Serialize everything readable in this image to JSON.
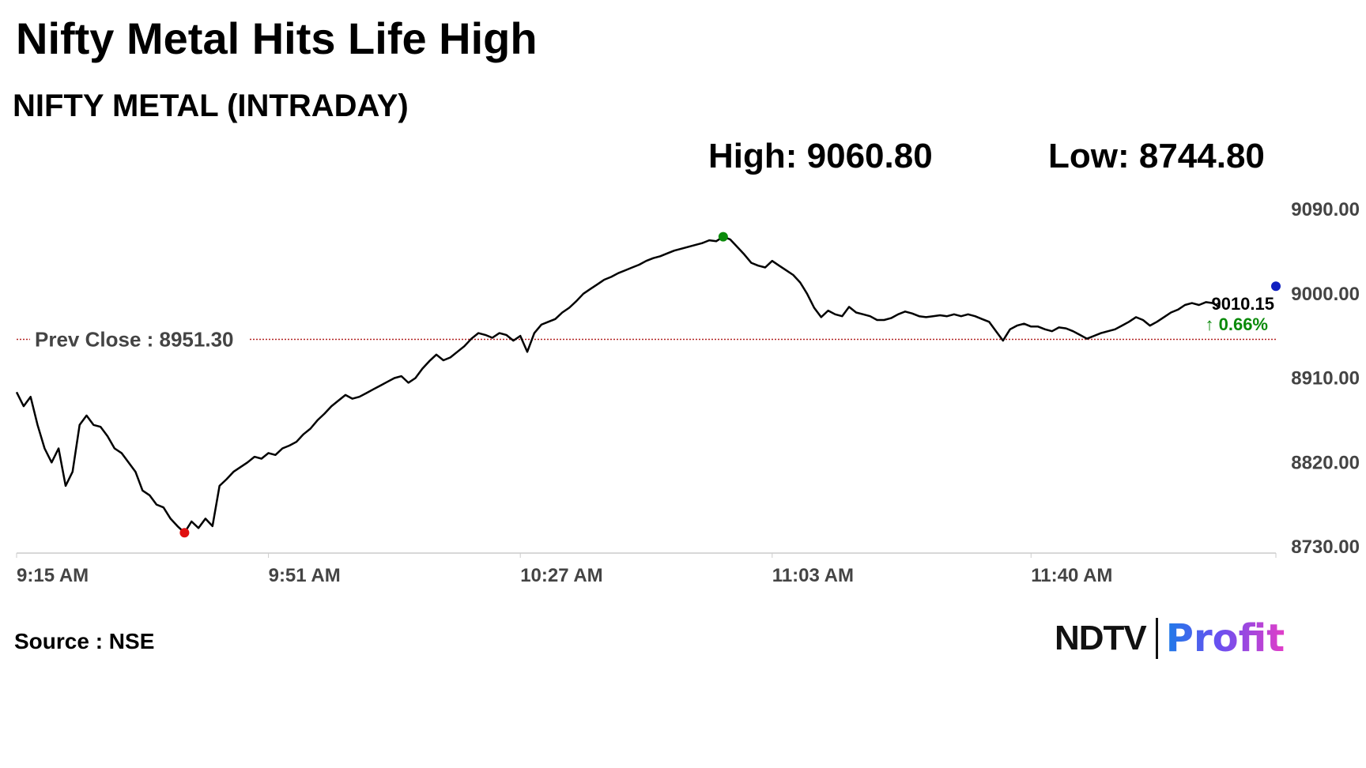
{
  "headline": "Nifty Metal Hits Life High",
  "chart_data": {
    "type": "line",
    "title": "NIFTY METAL (INTRADAY)",
    "stats": {
      "high_label": "High: 9060.80",
      "low_label": "Low: 8744.80"
    },
    "high": 9060.8,
    "low": 8744.8,
    "prev_close": 8951.3,
    "prev_close_label": "Prev Close : 8951.30",
    "last_value": "9010.15",
    "change_label": "↑ 0.66%",
    "ylim": [
      8730,
      9090
    ],
    "y_ticks": [
      "9090.00",
      "9000.00",
      "8910.00",
      "8820.00",
      "8730.00"
    ],
    "y_tick_values": [
      9090,
      9000,
      8910,
      8820,
      8730
    ],
    "x_ticks": [
      "9:15 AM",
      "9:51 AM",
      "10:27 AM",
      "11:03 AM",
      "11:40 AM"
    ],
    "x_tick_minutes": [
      0,
      36,
      72,
      108,
      145
    ],
    "xlim_minutes": [
      0,
      180
    ],
    "x_unit": "minutes since 9:15 AM",
    "series": [
      {
        "points": [
          [
            0,
            8895
          ],
          [
            1,
            8880
          ],
          [
            2,
            8890
          ],
          [
            3,
            8860
          ],
          [
            4,
            8835
          ],
          [
            5,
            8820
          ],
          [
            6,
            8835
          ],
          [
            7,
            8795
          ],
          [
            8,
            8810
          ],
          [
            9,
            8860
          ],
          [
            10,
            8870
          ],
          [
            11,
            8860
          ],
          [
            12,
            8858
          ],
          [
            13,
            8848
          ],
          [
            14,
            8835
          ],
          [
            15,
            8830
          ],
          [
            16,
            8820
          ],
          [
            17,
            8810
          ],
          [
            18,
            8790
          ],
          [
            19,
            8785
          ],
          [
            20,
            8775
          ],
          [
            21,
            8772
          ],
          [
            22,
            8760
          ],
          [
            23,
            8752
          ],
          [
            24,
            8745
          ],
          [
            25,
            8757
          ],
          [
            26,
            8750
          ],
          [
            27,
            8760
          ],
          [
            28,
            8752
          ],
          [
            29,
            8795
          ],
          [
            30,
            8802
          ],
          [
            31,
            8810
          ],
          [
            32,
            8815
          ],
          [
            33,
            8820
          ],
          [
            34,
            8826
          ],
          [
            35,
            8824
          ],
          [
            36,
            8830
          ],
          [
            37,
            8828
          ],
          [
            38,
            8835
          ],
          [
            39,
            8838
          ],
          [
            40,
            8842
          ],
          [
            41,
            8850
          ],
          [
            42,
            8856
          ],
          [
            43,
            8865
          ],
          [
            44,
            8872
          ],
          [
            45,
            8880
          ],
          [
            46,
            8886
          ],
          [
            47,
            8892
          ],
          [
            48,
            8888
          ],
          [
            49,
            8890
          ],
          [
            50,
            8894
          ],
          [
            51,
            8898
          ],
          [
            52,
            8902
          ],
          [
            53,
            8906
          ],
          [
            54,
            8910
          ],
          [
            55,
            8912
          ],
          [
            56,
            8905
          ],
          [
            57,
            8910
          ],
          [
            58,
            8920
          ],
          [
            59,
            8928
          ],
          [
            60,
            8935
          ],
          [
            61,
            8929
          ],
          [
            62,
            8932
          ],
          [
            63,
            8938
          ],
          [
            64,
            8944
          ],
          [
            65,
            8952
          ],
          [
            66,
            8958
          ],
          [
            67,
            8956
          ],
          [
            68,
            8953
          ],
          [
            69,
            8958
          ],
          [
            70,
            8956
          ],
          [
            71,
            8950
          ],
          [
            72,
            8955
          ],
          [
            73,
            8938
          ],
          [
            74,
            8958
          ],
          [
            75,
            8967
          ],
          [
            76,
            8970
          ],
          [
            77,
            8973
          ],
          [
            78,
            8980
          ],
          [
            79,
            8985
          ],
          [
            80,
            8992
          ],
          [
            81,
            9000
          ],
          [
            82,
            9005
          ],
          [
            83,
            9010
          ],
          [
            84,
            9015
          ],
          [
            85,
            9018
          ],
          [
            86,
            9022
          ],
          [
            87,
            9025
          ],
          [
            88,
            9028
          ],
          [
            89,
            9031
          ],
          [
            90,
            9035
          ],
          [
            91,
            9038
          ],
          [
            92,
            9040
          ],
          [
            93,
            9043
          ],
          [
            94,
            9046
          ],
          [
            95,
            9048
          ],
          [
            96,
            9050
          ],
          [
            97,
            9052
          ],
          [
            98,
            9054
          ],
          [
            99,
            9057
          ],
          [
            100,
            9056
          ],
          [
            101,
            9060.8
          ],
          [
            102,
            9058
          ],
          [
            103,
            9050
          ],
          [
            104,
            9042
          ],
          [
            105,
            9033
          ],
          [
            106,
            9030
          ],
          [
            107,
            9028
          ],
          [
            108,
            9035
          ],
          [
            109,
            9030
          ],
          [
            110,
            9025
          ],
          [
            111,
            9020
          ],
          [
            112,
            9012
          ],
          [
            113,
            9000
          ],
          [
            114,
            8985
          ],
          [
            115,
            8975
          ],
          [
            116,
            8982
          ],
          [
            117,
            8978
          ],
          [
            118,
            8976
          ],
          [
            119,
            8986
          ],
          [
            120,
            8980
          ],
          [
            121,
            8978
          ],
          [
            122,
            8976
          ],
          [
            123,
            8972
          ],
          [
            124,
            8972
          ],
          [
            125,
            8974
          ],
          [
            126,
            8978
          ],
          [
            127,
            8981
          ],
          [
            128,
            8979
          ],
          [
            129,
            8976
          ],
          [
            130,
            8975
          ],
          [
            131,
            8976
          ],
          [
            132,
            8977
          ],
          [
            133,
            8976
          ],
          [
            134,
            8978
          ],
          [
            135,
            8976
          ],
          [
            136,
            8978
          ],
          [
            137,
            8976
          ],
          [
            138,
            8973
          ],
          [
            139,
            8970
          ],
          [
            140,
            8960
          ],
          [
            141,
            8950
          ],
          [
            142,
            8962
          ],
          [
            143,
            8966
          ],
          [
            144,
            8968
          ],
          [
            145,
            8965
          ],
          [
            146,
            8965
          ],
          [
            147,
            8962
          ],
          [
            148,
            8960
          ],
          [
            149,
            8964
          ],
          [
            150,
            8963
          ],
          [
            151,
            8960
          ],
          [
            152,
            8956
          ],
          [
            153,
            8952
          ],
          [
            154,
            8955
          ],
          [
            155,
            8958
          ],
          [
            156,
            8960
          ],
          [
            157,
            8962
          ],
          [
            158,
            8966
          ],
          [
            159,
            8970
          ],
          [
            160,
            8975
          ],
          [
            161,
            8972
          ],
          [
            162,
            8966
          ],
          [
            163,
            8970
          ],
          [
            164,
            8975
          ],
          [
            165,
            8980
          ],
          [
            166,
            8983
          ],
          [
            167,
            8988
          ],
          [
            168,
            8990
          ],
          [
            169,
            8988
          ],
          [
            170,
            8991
          ],
          [
            171,
            8990
          ],
          [
            172,
            8985
          ]
        ]
      }
    ],
    "markers": [
      {
        "name": "high-marker",
        "x": 101,
        "y": 9060.8,
        "color": "#0a8a0a"
      },
      {
        "name": "low-marker",
        "x": 24,
        "y": 8745.0,
        "color": "#e01010"
      },
      {
        "name": "last-marker",
        "x": 180,
        "y": 9008.0,
        "color": "#1020c0"
      }
    ],
    "colors": {
      "line": "#000000",
      "prev_close": "#b22222",
      "change": "#0a8a0a",
      "axis_text": "#444444"
    },
    "grid": false
  },
  "footer": {
    "source": "Source : NSE"
  },
  "logo": {
    "brand": "NDTV",
    "product": "Profit"
  }
}
